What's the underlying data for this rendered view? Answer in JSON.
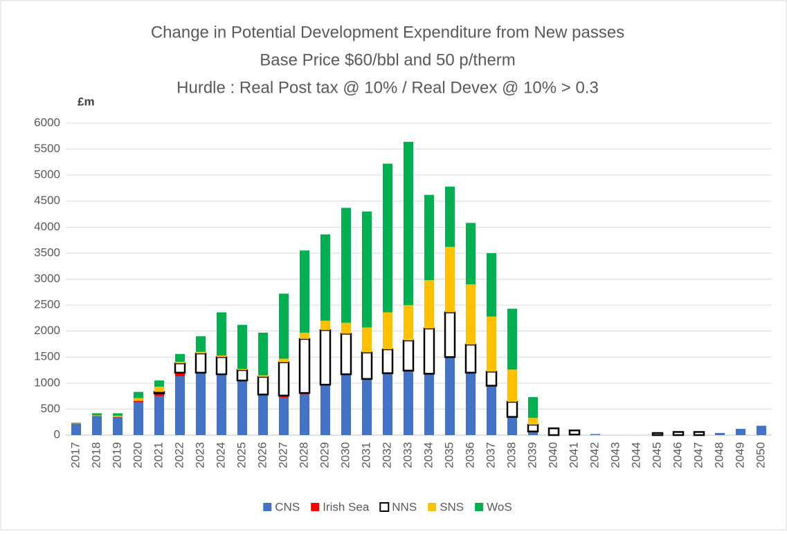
{
  "chart_data": {
    "type": "stacked_bar",
    "title": [
      "Change in Potential Development Expenditure from New passes",
      "Base Price $60/bbl and 50 p/therm",
      "Hurdle : Real Post tax @ 10% / Real Devex @ 10% > 0.3"
    ],
    "ylabel": "£m",
    "categories": [
      "2017",
      "2018",
      "2019",
      "2020",
      "2021",
      "2022",
      "2023",
      "2024",
      "2025",
      "2026",
      "2027",
      "2028",
      "2029",
      "2030",
      "2031",
      "2032",
      "2033",
      "2034",
      "2035",
      "2036",
      "2037",
      "2038",
      "2039",
      "2040",
      "2041",
      "2042",
      "2043",
      "2044",
      "2045",
      "2046",
      "2047",
      "2048",
      "2049",
      "2050"
    ],
    "series": [
      {
        "name": "CNS",
        "color": "#4472c4",
        "values": [
          220,
          370,
          340,
          630,
          750,
          1130,
          1200,
          1170,
          1050,
          780,
          720,
          780,
          970,
          1170,
          1080,
          1190,
          1240,
          1180,
          1500,
          1200,
          950,
          350,
          70,
          0,
          10,
          20,
          0,
          0,
          0,
          0,
          0,
          40,
          120,
          180
        ]
      },
      {
        "name": "Irish Sea",
        "color": "#ff0000",
        "values": [
          0,
          0,
          10,
          30,
          50,
          70,
          0,
          0,
          0,
          0,
          40,
          30,
          0,
          0,
          0,
          0,
          0,
          0,
          0,
          0,
          0,
          0,
          0,
          0,
          0,
          0,
          0,
          0,
          0,
          0,
          0,
          0,
          0,
          0
        ]
      },
      {
        "name": "NNS",
        "color": "#ffffff",
        "edgecolor": "#000000",
        "values": [
          0,
          0,
          0,
          0,
          30,
          180,
          370,
          330,
          200,
          340,
          640,
          1040,
          1050,
          780,
          510,
          460,
          580,
          870,
          860,
          540,
          270,
          290,
          130,
          130,
          80,
          0,
          0,
          0,
          40,
          60,
          60,
          0,
          0,
          0
        ]
      },
      {
        "name": "SNS",
        "color": "#ffc000",
        "values": [
          10,
          10,
          20,
          50,
          100,
          30,
          30,
          30,
          20,
          30,
          70,
          120,
          180,
          210,
          480,
          710,
          680,
          930,
          1260,
          1160,
          1060,
          620,
          130,
          0,
          0,
          0,
          0,
          0,
          0,
          0,
          0,
          0,
          0,
          0
        ]
      },
      {
        "name": "WoS",
        "color": "#00b050",
        "values": [
          10,
          40,
          50,
          120,
          120,
          150,
          300,
          830,
          850,
          820,
          1250,
          1580,
          1660,
          2210,
          2230,
          2860,
          3140,
          1640,
          1160,
          1180,
          1220,
          1170,
          400,
          0,
          0,
          0,
          0,
          0,
          0,
          0,
          0,
          0,
          0,
          0
        ]
      }
    ],
    "ylim": [
      0,
      6000
    ],
    "yticks": [
      0,
      500,
      1000,
      1500,
      2000,
      2500,
      3000,
      3500,
      4000,
      4500,
      5000,
      5500,
      6000
    ],
    "grid": true,
    "legend": "bottom"
  }
}
